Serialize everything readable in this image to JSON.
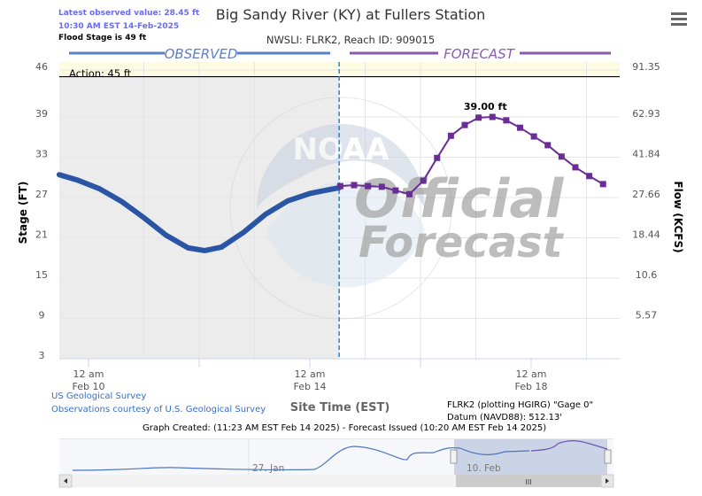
{
  "header": {
    "latest_value": "Latest observed value: 28.45 ft",
    "latest_time": "10:30 AM EST 14-Feb-2025",
    "flood_stage": "Flood Stage is 49 ft",
    "title": "Big Sandy River (KY) at Fullers Station",
    "subtitle": "NWSLI: FLRK2, Reach ID: 909015",
    "menu_icon": "hamburger-menu-icon"
  },
  "labels": {
    "observed": "OBSERVED",
    "forecast": "FORECAST",
    "action": "Action: 45 ft",
    "peak": "39.00 ft",
    "watermark_1": "Official",
    "watermark_2": "Forecast"
  },
  "colors": {
    "observed": "#2a55a5",
    "forecast": "#6a2c95",
    "observed_label": "#5b7fc4",
    "forecast_label": "#8a5ab0",
    "action_band": "#fdfbe2",
    "observed_bg": "#ececec"
  },
  "chart_data": {
    "type": "line",
    "title": "Big Sandy River (KY) at Fullers Station",
    "xlabel": "Site Time (EST)",
    "ylabel": "Stage (FT)",
    "y2label": "Flow (KCFS)",
    "ylim": [
      3,
      46
    ],
    "xlim_feb_day": [
      9.47,
      19.5
    ],
    "yticks": [
      46,
      39,
      33,
      27,
      21,
      15,
      9,
      3
    ],
    "y2ticks": [
      "91.35",
      "62.93",
      "41.84",
      "27.66",
      "18.44",
      "10.6",
      "5.57"
    ],
    "xticks": [
      {
        "day": 10,
        "l1": "12 am",
        "l2": "Feb 10"
      },
      {
        "day": 14,
        "l1": "12 am",
        "l2": "Feb 14"
      },
      {
        "day": 18,
        "l1": "12 am",
        "l2": "Feb 18"
      }
    ],
    "action_stage": 45,
    "series": [
      {
        "name": "Observed",
        "x_feb_day": [
          9.47,
          9.8,
          10.2,
          10.6,
          11.0,
          11.4,
          11.8,
          12.1,
          12.4,
          12.8,
          13.2,
          13.6,
          14.0,
          14.3,
          14.53
        ],
        "values": [
          30.4,
          29.6,
          28.3,
          26.4,
          24.0,
          21.4,
          19.5,
          19.1,
          19.6,
          21.8,
          24.5,
          26.5,
          27.6,
          28.1,
          28.45
        ]
      },
      {
        "name": "Forecast",
        "x_feb_day": [
          14.55,
          14.8,
          15.05,
          15.3,
          15.55,
          15.8,
          16.05,
          16.3,
          16.55,
          16.8,
          17.05,
          17.3,
          17.55,
          17.8,
          18.05,
          18.3,
          18.55,
          18.8,
          19.05,
          19.3
        ],
        "values": [
          28.7,
          28.85,
          28.7,
          28.6,
          28.05,
          27.5,
          29.5,
          32.9,
          36.2,
          37.8,
          38.9,
          39.0,
          38.5,
          37.4,
          36.1,
          34.8,
          33.1,
          31.5,
          30.2,
          29.0
        ]
      }
    ],
    "peak_label": "39.00 ft"
  },
  "footer": {
    "usgs_link": "US Geological Survey",
    "usgs_courtesy": "Observations courtesy of U.S. Geological Survey",
    "plotting": "FLRK2 (plotting HGIRG) \"Gage 0\"",
    "datum": "Datum (NAVD88): 512.13'",
    "created": "Graph Created: (11:23 AM EST Feb 14 2025) - Forecast Issued (10:20 AM EST Feb 14 2025)"
  },
  "navigator": {
    "label_1": "27. Jan",
    "label_2": "10. Feb",
    "scroll_grip": "III"
  }
}
